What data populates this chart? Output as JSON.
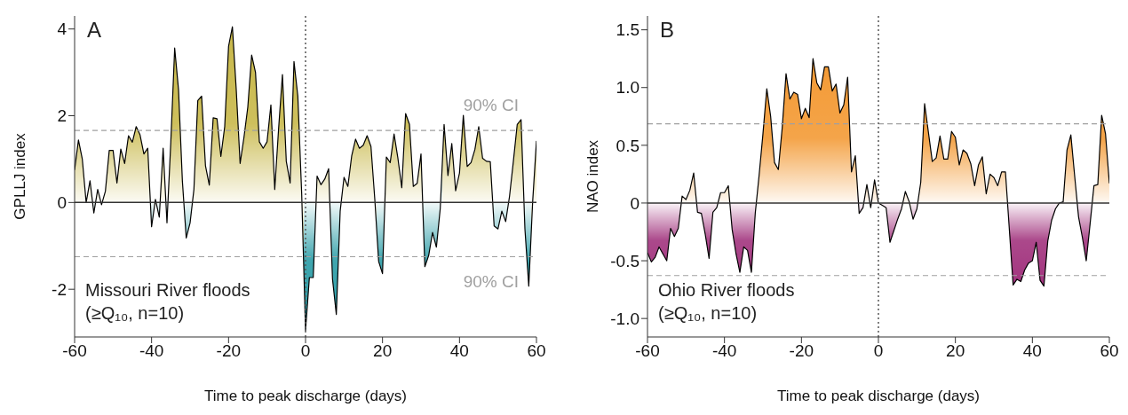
{
  "chart_data": [
    {
      "type": "area",
      "xlabel": "Time to peak discharge (days)",
      "ylabel": "GPLLJ index",
      "annotations": [
        "A",
        "Missouri River floods",
        "(≥Q₁₀, n=10)"
      ],
      "x": [
        -60,
        -59,
        -58,
        -57,
        -56,
        -55,
        -54,
        -53,
        -52,
        -51,
        -50,
        -49,
        -48,
        -47,
        -46,
        -45,
        -44,
        -43,
        -42,
        -41,
        -40,
        -39,
        -38,
        -37,
        -36,
        -35,
        -34,
        -33,
        -32,
        -31,
        -30,
        -29,
        -28,
        -27,
        -26,
        -25,
        -24,
        -23,
        -22,
        -21,
        -20,
        -19,
        -18,
        -17,
        -16,
        -15,
        -14,
        -13,
        -12,
        -11,
        -10,
        -9,
        -8,
        -7,
        -6,
        -5,
        -4,
        -3,
        -2,
        -1,
        0,
        1,
        2,
        3,
        4,
        5,
        6,
        7,
        8,
        9,
        10,
        11,
        12,
        13,
        14,
        15,
        16,
        17,
        18,
        19,
        20,
        21,
        22,
        23,
        24,
        25,
        26,
        27,
        28,
        29,
        30,
        31,
        32,
        33,
        34,
        35,
        36,
        37,
        38,
        39,
        40,
        41,
        42,
        43,
        44,
        45,
        46,
        47,
        48,
        49,
        50,
        51,
        52,
        53,
        54,
        55,
        56,
        57,
        58,
        59,
        60
      ],
      "series": [
        {
          "color": "#000000",
          "colors": [
            "#c8b84a",
            "#c8b84a",
            "#c8b84a",
            "#c8b84a",
            "#c8b84a",
            "#2b9ca6",
            "#c8b84a",
            "#2b9ca6",
            "#c8b84a",
            "#c8b84a",
            "#c8b84a",
            "#c8b84a",
            "#c8b84a",
            "#c8b84a",
            "#c8b84a",
            "#c8b84a",
            "#c8b84a",
            "#c8b84a",
            "#c8b84a",
            "#c8b84a",
            "#2b9ca6",
            "#c8b84a",
            "#2b9ca6",
            "#c8b84a",
            "#2b9ca6",
            "#c8b84a",
            "#c8b84a",
            "#c8b84a",
            "#c8b84a",
            "#2b9ca6",
            "#2b9ca6",
            "#c8b84a",
            "#c8b84a",
            "#c8b84a",
            "#c8b84a",
            "#c8b84a",
            "#c8b84a",
            "#c8b84a",
            "#c8b84a",
            "#c8b84a",
            "#c8b84a",
            "#c8b84a",
            "#c8b84a",
            "#c8b84a",
            "#c8b84a",
            "#c8b84a",
            "#c8b84a",
            "#c8b84a",
            "#c8b84a",
            "#c8b84a",
            "#c8b84a",
            "#c8b84a",
            "#c8b84a",
            "#c8b84a",
            "#c8b84a",
            "#c8b84a",
            "#c8b84a",
            "#c8b84a",
            "#c8b84a",
            "#c8b84a",
            "#2b9ca6",
            "#2b9ca6",
            "#2b9ca6",
            "#c8b84a",
            "#c8b84a",
            "#c8b84a",
            "#c8b84a",
            "#2b9ca6",
            "#2b9ca6",
            "#2b9ca6",
            "#c8b84a",
            "#c8b84a",
            "#c8b84a",
            "#c8b84a",
            "#c8b84a",
            "#c8b84a",
            "#c8b84a",
            "#c8b84a",
            "#c8b84a",
            "#2b9ca6",
            "#2b9ca6",
            "#c8b84a",
            "#c8b84a",
            "#c8b84a",
            "#c8b84a",
            "#c8b84a",
            "#c8b84a",
            "#c8b84a",
            "#c8b84a",
            "#c8b84a",
            "#c8b84a",
            "#2b9ca6",
            "#2b9ca6",
            "#2b9ca6",
            "#2b9ca6",
            "#2b9ca6",
            "#c8b84a",
            "#c8b84a",
            "#c8b84a",
            "#c8b84a",
            "#c8b84a",
            "#c8b84a",
            "#c8b84a",
            "#c8b84a",
            "#c8b84a",
            "#c8b84a",
            "#c8b84a",
            "#c8b84a",
            "#c8b84a",
            "#2b9ca6",
            "#2b9ca6",
            "#2b9ca6",
            "#2b9ca6",
            "#c8b84a",
            "#c8b84a",
            "#c8b84a",
            "#c8b84a",
            "#2b9ca6",
            "#2b9ca6",
            "#c8b84a",
            "#c8b84a"
          ],
          "values": [
            0.75,
            1.44,
            1.0,
            0,
            0.5,
            -0.24,
            0.3,
            -0.05,
            0.26,
            1.2,
            1.2,
            0.45,
            1.23,
            0.9,
            1.54,
            1.39,
            1.75,
            1.56,
            1.12,
            1.25,
            -0.56,
            0.07,
            -0.34,
            1.25,
            -0.47,
            1.4,
            3.56,
            2.6,
            0.5,
            -0.82,
            -0.47,
            0.3,
            2.35,
            2.45,
            0.85,
            0.4,
            1.95,
            1.93,
            1.06,
            1.75,
            3.6,
            4.05,
            2.6,
            0.9,
            1.5,
            2.2,
            3.4,
            3.0,
            1.4,
            1.25,
            1.4,
            2.25,
            0.3,
            1.7,
            2.95,
            0.95,
            0.45,
            3.25,
            2.45,
            0.2,
            -2.95,
            -1.73,
            -1.73,
            0.61,
            0.41,
            0.54,
            0.78,
            -1.76,
            -2.58,
            -0.2,
            0.58,
            0.37,
            1.08,
            1.46,
            1.25,
            1.32,
            1.54,
            1.29,
            0.07,
            -1.36,
            -1.64,
            1.05,
            0.92,
            1.58,
            1.02,
            0.34,
            2.05,
            1.8,
            0.37,
            0.44,
            1.12,
            -1.48,
            -1.22,
            -0.69,
            -1.03,
            -0.14,
            1.8,
            0.62,
            1.36,
            0.27,
            0.68,
            2.01,
            0.83,
            0.92,
            1.22,
            1.75,
            1.02,
            0.95,
            0.94,
            -0.54,
            -0.61,
            -0.2,
            -0.44,
            0.14,
            0.95,
            1.8,
            1.91,
            -0.61,
            -1.93,
            0,
            1.42
          ]
        }
      ],
      "xlim": [
        -60,
        60
      ],
      "xticks": [
        -60,
        -40,
        -20,
        0,
        20,
        40,
        60
      ],
      "ylim": [
        -3.1,
        4.3
      ],
      "yticks": [
        -2,
        0,
        2,
        4
      ],
      "ref_lines": [
        {
          "axis": "y",
          "value": 1.66,
          "label": "90% CI",
          "color": "#a0a0a0",
          "line_style": "dashed"
        },
        {
          "axis": "y",
          "value": -1.25,
          "label": "90% CI",
          "color": "#a0a0a0",
          "line_style": "dashed"
        },
        {
          "axis": "y",
          "value": 0,
          "color": "#333333",
          "line_style": "solid"
        },
        {
          "axis": "x",
          "value": 0,
          "color": "#555555",
          "line_style": "dotted"
        }
      ],
      "grid": false,
      "legend": false
    },
    {
      "type": "area",
      "xlabel": "Time to peak discharge (days)",
      "ylabel": "NAO index",
      "annotations": [
        "B",
        "Ohio River floods",
        "(≥Q₁₀, n=10)"
      ],
      "x": [
        -60,
        -59,
        -58,
        -57,
        -56,
        -55,
        -54,
        -53,
        -52,
        -51,
        -50,
        -49,
        -48,
        -47,
        -46,
        -45,
        -44,
        -43,
        -42,
        -41,
        -40,
        -39,
        -38,
        -37,
        -36,
        -35,
        -34,
        -33,
        -32,
        -31,
        -30,
        -29,
        -28,
        -27,
        -26,
        -25,
        -24,
        -23,
        -22,
        -21,
        -20,
        -19,
        -18,
        -17,
        -16,
        -15,
        -14,
        -13,
        -12,
        -11,
        -10,
        -9,
        -8,
        -7,
        -6,
        -5,
        -4,
        -3,
        -2,
        -1,
        0,
        1,
        2,
        3,
        4,
        5,
        6,
        7,
        8,
        9,
        10,
        11,
        12,
        13,
        14,
        15,
        16,
        17,
        18,
        19,
        20,
        21,
        22,
        23,
        24,
        25,
        26,
        27,
        28,
        29,
        30,
        31,
        32,
        33,
        34,
        35,
        36,
        37,
        38,
        39,
        40,
        41,
        42,
        43,
        44,
        45,
        46,
        47,
        48,
        49,
        50,
        51,
        52,
        53,
        54,
        55,
        56,
        57,
        58,
        59,
        60
      ],
      "series": [
        {
          "color": "#000000",
          "colors": [
            "#a2347e",
            "#a2347e",
            "#a2347e",
            "#a2347e",
            "#a2347e",
            "#a2347e",
            "#a2347e",
            "#a2347e",
            "#a2347e",
            "#f39a35",
            "#f39a35",
            "#f39a35",
            "#f39a35",
            "#a2347e",
            "#a2347e",
            "#a2347e",
            "#a2347e",
            "#a2347e",
            "#a2347e",
            "#f39a35",
            "#f39a35",
            "#f39a35",
            "#a2347e",
            "#a2347e",
            "#a2347e",
            "#a2347e",
            "#a2347e",
            "#a2347e",
            "#a2347e",
            "#f39a35",
            "#f39a35",
            "#f39a35",
            "#f39a35",
            "#f39a35",
            "#f39a35",
            "#f39a35",
            "#f39a35",
            "#f39a35",
            "#f39a35",
            "#f39a35",
            "#f39a35",
            "#f39a35",
            "#f39a35",
            "#f39a35",
            "#f39a35",
            "#f39a35",
            "#f39a35",
            "#f39a35",
            "#f39a35",
            "#f39a35",
            "#f39a35",
            "#f39a35",
            "#f39a35",
            "#f39a35",
            "#f39a35",
            "#a2347e",
            "#a2347e",
            "#f39a35",
            "#a2347e",
            "#f39a35",
            "#f39a35",
            "#a2347e",
            "#a2347e",
            "#a2347e",
            "#a2347e",
            "#a2347e",
            "#a2347e",
            "#f39a35",
            "#f39a35",
            "#a2347e",
            "#a2347e",
            "#f39a35",
            "#f39a35",
            "#f39a35",
            "#f39a35",
            "#f39a35",
            "#f39a35",
            "#f39a35",
            "#f39a35",
            "#f39a35",
            "#f39a35",
            "#f39a35",
            "#f39a35",
            "#f39a35",
            "#f39a35",
            "#f39a35",
            "#f39a35",
            "#f39a35",
            "#f39a35",
            "#f39a35",
            "#f39a35",
            "#f39a35",
            "#f39a35",
            "#f39a35",
            "#a2347e",
            "#a2347e",
            "#a2347e",
            "#a2347e",
            "#a2347e",
            "#a2347e",
            "#a2347e",
            "#a2347e",
            "#a2347e",
            "#a2347e",
            "#a2347e",
            "#a2347e",
            "#a2347e",
            "#f39a35",
            "#f39a35",
            "#f39a35",
            "#f39a35",
            "#f39a35",
            "#a2347e",
            "#a2347e",
            "#a2347e",
            "#a2347e",
            "#f39a35",
            "#f39a35",
            "#f39a35",
            "#f39a35",
            "#f39a35"
          ],
          "values": [
            -0.43,
            -0.51,
            -0.47,
            -0.38,
            -0.44,
            -0.5,
            -0.22,
            -0.29,
            -0.22,
            0.06,
            0.03,
            0.11,
            0.26,
            -0.08,
            -0.09,
            -0.27,
            -0.48,
            -0.08,
            -0.04,
            0.09,
            0.09,
            0.15,
            -0.23,
            -0.44,
            -0.6,
            -0.38,
            -0.41,
            -0.6,
            -0.09,
            0.24,
            0.6,
            0.99,
            0.75,
            0.35,
            0.29,
            0.65,
            1.12,
            0.9,
            0.96,
            0.94,
            0.73,
            0.82,
            0.74,
            1.25,
            1.04,
            0.98,
            1.18,
            1.18,
            0.97,
            1.03,
            0.78,
            0.85,
            1.09,
            0.27,
            0.41,
            -0.09,
            -0.04,
            0.16,
            -0.04,
            0.2,
            0,
            -0.02,
            -0.04,
            -0.34,
            -0.24,
            -0.14,
            -0.05,
            0.1,
            0.01,
            -0.14,
            -0.05,
            0.18,
            0.86,
            0.61,
            0.36,
            0.39,
            0.58,
            0.38,
            0.38,
            0.62,
            0.57,
            0.33,
            0.46,
            0.43,
            0.34,
            0.15,
            0.33,
            0.4,
            0.08,
            0.25,
            0.22,
            0.15,
            0.27,
            0.27,
            -0.22,
            -0.71,
            -0.66,
            -0.68,
            -0.58,
            -0.52,
            -0.5,
            -0.34,
            -0.67,
            -0.72,
            -0.33,
            -0.15,
            -0.05,
            0,
            0.01,
            0.46,
            0.59,
            0.23,
            -0.12,
            -0.3,
            -0.5,
            -0.18,
            0.15,
            0.16,
            0.76,
            0.6,
            0.17
          ]
        }
      ],
      "xlim": [
        -60,
        60
      ],
      "xticks": [
        -60,
        -40,
        -20,
        0,
        20,
        40,
        60
      ],
      "ylim": [
        -1.16,
        1.62
      ],
      "yticks": [
        {
          "value": -1,
          "label": "-1.0"
        },
        {
          "value": -0.5,
          "label": "-0.5"
        },
        0,
        {
          "value": 0.5,
          "label": "0.5"
        },
        {
          "value": 1,
          "label": "1.0"
        },
        {
          "value": 1.5,
          "label": "1.5"
        }
      ],
      "ref_lines": [
        {
          "axis": "y",
          "value": 0.686,
          "color": "#a0a0a0",
          "line_style": "dashed"
        },
        {
          "axis": "y",
          "value": -0.628,
          "color": "#a0a0a0",
          "line_style": "dashed"
        },
        {
          "axis": "y",
          "value": 0,
          "color": "#333333",
          "line_style": "solid"
        },
        {
          "axis": "x",
          "value": 0,
          "color": "#555555",
          "line_style": "dotted"
        }
      ],
      "grid": false,
      "legend": false
    }
  ]
}
